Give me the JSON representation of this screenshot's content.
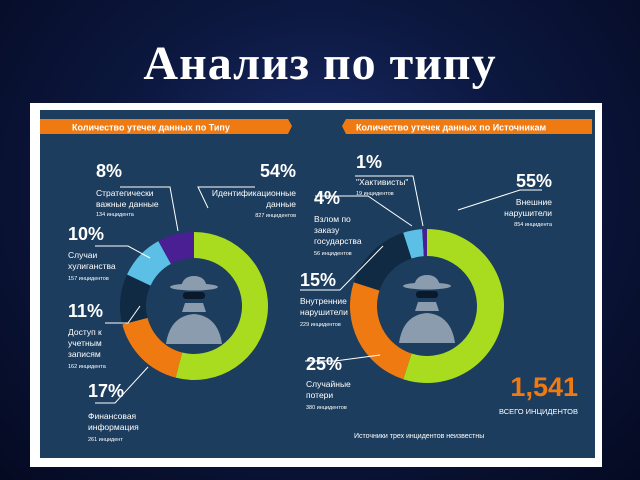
{
  "slide": {
    "title": "Анализ по типу"
  },
  "left": {
    "header": "Количество утечек данных по Типу",
    "labels": {
      "strategic": {
        "pct": "8%",
        "lines": [
          "Стратегически",
          "важные данные"
        ],
        "count": "134 инцидента"
      },
      "identification": {
        "pct": "54%",
        "lines": [
          "Идентификационные",
          "данные"
        ],
        "count": "827 инцидентов"
      },
      "hooligan": {
        "pct": "10%",
        "lines": [
          "Случаи",
          "хулиганства"
        ],
        "count": "157 инцидентов"
      },
      "account": {
        "pct": "11%",
        "lines": [
          "Доступ к",
          "учетным",
          "записям"
        ],
        "count": "162 инцидента"
      },
      "financial": {
        "pct": "17%",
        "lines": [
          "Финансовая",
          "информация"
        ],
        "count": "261 инцидент"
      }
    }
  },
  "right": {
    "header": "Количество утечек данных по Источникам",
    "labels": {
      "hacktivists": {
        "pct": "1%",
        "lines": [
          "\"Хактивисты\""
        ],
        "count": "19 инцидентов"
      },
      "external": {
        "pct": "55%",
        "lines": [
          "Внешние",
          "нарушители"
        ],
        "count": "854 инцидента"
      },
      "state": {
        "pct": "4%",
        "lines": [
          "Взлом по",
          "заказу",
          "государства"
        ],
        "count": "56 инцидентов"
      },
      "internal": {
        "pct": "15%",
        "lines": [
          "Внутренние",
          "нарушители"
        ],
        "count": "229 инцидентов"
      },
      "accidental": {
        "pct": "25%",
        "lines": [
          "Случайные",
          "потери"
        ],
        "count": "380 инцидентов"
      }
    },
    "total": {
      "value": "1,541",
      "label": "ВСЕГО ИНЦИДЕНТОВ"
    },
    "footnote": "Источники трех инцидентов неизвестны"
  },
  "chart_data": [
    {
      "type": "pie",
      "title": "Количество утечек данных по Типу",
      "series": [
        {
          "name": "Идентификационные данные",
          "pct": 54,
          "count": 827,
          "color": "#a9dc1f"
        },
        {
          "name": "Финансовая информация",
          "pct": 17,
          "count": 261,
          "color": "#f07a12"
        },
        {
          "name": "Доступ к учетным записям",
          "pct": 11,
          "count": 162,
          "color": "#0f2a42"
        },
        {
          "name": "Случаи хулиганства",
          "pct": 10,
          "count": 157,
          "color": "#5cc0e6"
        },
        {
          "name": "Стратегически важные данные",
          "pct": 8,
          "count": 134,
          "color": "#4a1f94"
        }
      ]
    },
    {
      "type": "pie",
      "title": "Количество утечек данных по Источникам",
      "series": [
        {
          "name": "Внешние нарушители",
          "pct": 55,
          "count": 854,
          "color": "#a9dc1f"
        },
        {
          "name": "Случайные потери",
          "pct": 25,
          "count": 380,
          "color": "#f07a12"
        },
        {
          "name": "Внутренние нарушители",
          "pct": 15,
          "count": 229,
          "color": "#0f2a42"
        },
        {
          "name": "Взлом по заказу государства",
          "pct": 4,
          "count": 56,
          "color": "#5cc0e6"
        },
        {
          "name": "\"Хактивисты\"",
          "pct": 1,
          "count": 19,
          "color": "#4a1f94"
        }
      ]
    }
  ]
}
